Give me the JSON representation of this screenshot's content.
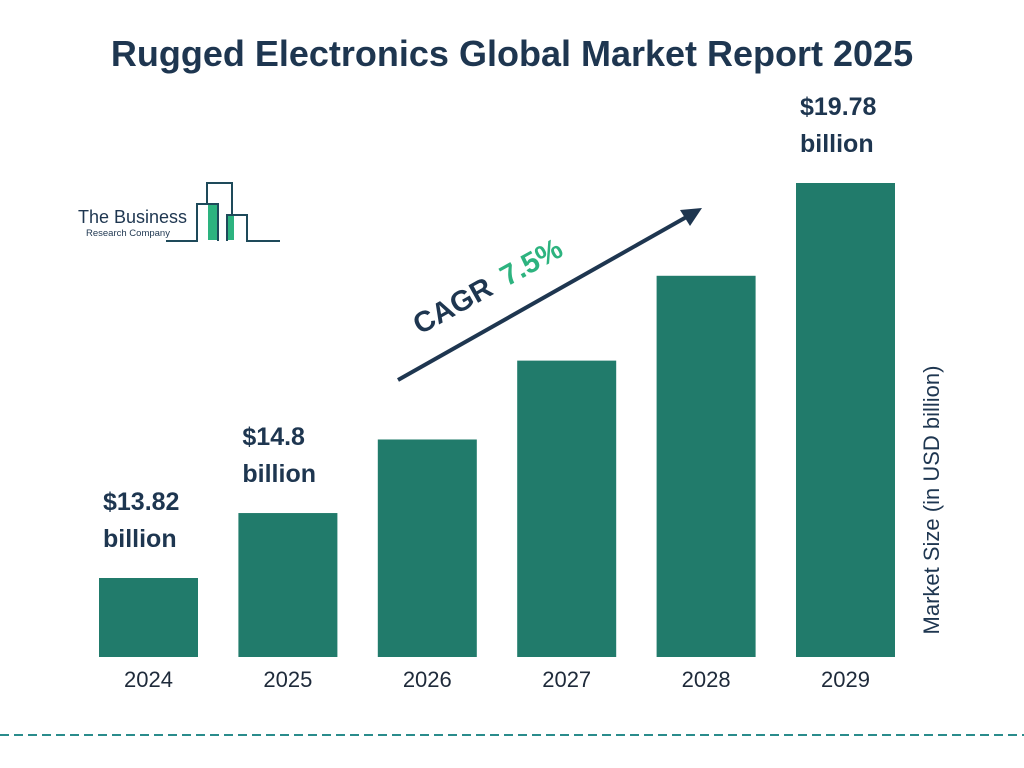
{
  "chart_data": {
    "type": "bar",
    "title": "Rugged Electronics Global Market Report 2025",
    "categories": [
      "2024",
      "2025",
      "2026",
      "2027",
      "2028",
      "2029"
    ],
    "values": [
      13.82,
      14.8,
      15.91,
      17.1,
      18.38,
      19.78
    ],
    "data_labels": [
      "$13.82 billion",
      "$14.8 billion",
      "",
      "",
      "",
      "$19.78 billion"
    ],
    "ylabel": "Market Size (in USD billion)",
    "annotation": {
      "prefix": "CAGR",
      "value": "7.5%"
    },
    "grid": false,
    "legend": "none",
    "colors": {
      "bar": "#217b6b",
      "text": "#1e3650",
      "cagr": "#2db37f",
      "divider": "#2a8c8c"
    }
  },
  "logo": {
    "line1": "The Business",
    "line2": "Research Company"
  }
}
